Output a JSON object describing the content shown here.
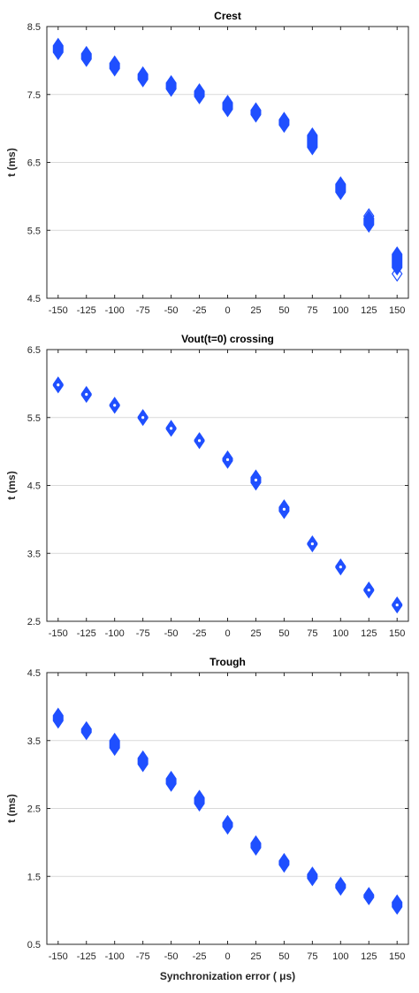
{
  "figure": {
    "xlabel": "Synchronization error ( μs)"
  },
  "chart_data": [
    {
      "type": "scatter",
      "title": "Crest",
      "xlabel": "",
      "ylabel": "t (ms)",
      "xlim": [
        -160,
        160
      ],
      "ylim": [
        4.5,
        8.5
      ],
      "xticks": [
        -150,
        -125,
        -100,
        -75,
        -50,
        -25,
        0,
        25,
        50,
        75,
        100,
        125,
        150
      ],
      "xticklabels": [
        "-150",
        "-125",
        "-100",
        "-75",
        "-50",
        "-25",
        "0",
        "25",
        "50",
        "75",
        "100",
        "125",
        "150"
      ],
      "yticks": [
        4.5,
        5.5,
        6.5,
        7.5,
        8.5
      ],
      "yticklabels": [
        "4.5",
        "5.5",
        "6.5",
        "7.5",
        "8.5"
      ],
      "grid": "horizontal",
      "marker": "diamond",
      "color": "#1f4fff",
      "points": [
        {
          "x": -150,
          "y_min": 8.12,
          "y_max": 8.22
        },
        {
          "x": -125,
          "y_min": 8.02,
          "y_max": 8.1
        },
        {
          "x": -100,
          "y_min": 7.88,
          "y_max": 7.96
        },
        {
          "x": -75,
          "y_min": 7.72,
          "y_max": 7.8
        },
        {
          "x": -50,
          "y_min": 7.58,
          "y_max": 7.67
        },
        {
          "x": -25,
          "y_min": 7.47,
          "y_max": 7.55
        },
        {
          "x": 0,
          "y_min": 7.28,
          "y_max": 7.38
        },
        {
          "x": 25,
          "y_min": 7.2,
          "y_max": 7.27
        },
        {
          "x": 50,
          "y_min": 7.05,
          "y_max": 7.13
        },
        {
          "x": 75,
          "y_min": 6.72,
          "y_max": 6.9
        },
        {
          "x": 100,
          "y_min": 6.06,
          "y_max": 6.18
        },
        {
          "x": 125,
          "y_min": 5.58,
          "y_max": 5.68
        },
        {
          "x": 150,
          "y_min": 4.95,
          "y_max": 5.15
        },
        {
          "x": 150,
          "y": 4.86,
          "hollow": true
        },
        {
          "x": 125,
          "y": 5.71,
          "hollow": true
        }
      ]
    },
    {
      "type": "scatter",
      "title": "Vout(t=0) crossing",
      "xlabel": "",
      "ylabel": "t (ms)",
      "xlim": [
        -160,
        160
      ],
      "ylim": [
        2.5,
        6.5
      ],
      "xticks": [
        -150,
        -125,
        -100,
        -75,
        -50,
        -25,
        0,
        25,
        50,
        75,
        100,
        125,
        150
      ],
      "xticklabels": [
        "-150",
        "-125",
        "-100",
        "-75",
        "-50",
        "-25",
        "0",
        "25",
        "50",
        "75",
        "100",
        "125",
        "150"
      ],
      "yticks": [
        2.5,
        3.5,
        4.5,
        5.5,
        6.5
      ],
      "yticklabels": [
        "2.5",
        "3.5",
        "4.5",
        "5.5",
        "6.5"
      ],
      "grid": "horizontal",
      "marker": "diamond",
      "color": "#1f4fff",
      "points": [
        {
          "x": -150,
          "y_min": 5.97,
          "y_max": 5.99
        },
        {
          "x": -125,
          "y_min": 5.83,
          "y_max": 5.85
        },
        {
          "x": -100,
          "y_min": 5.67,
          "y_max": 5.69
        },
        {
          "x": -75,
          "y_min": 5.49,
          "y_max": 5.51
        },
        {
          "x": -50,
          "y_min": 5.33,
          "y_max": 5.35
        },
        {
          "x": -25,
          "y_min": 5.15,
          "y_max": 5.17
        },
        {
          "x": 0,
          "y_min": 4.86,
          "y_max": 4.9
        },
        {
          "x": 25,
          "y_min": 4.54,
          "y_max": 4.62
        },
        {
          "x": 50,
          "y_min": 4.12,
          "y_max": 4.18
        },
        {
          "x": 75,
          "y_min": 3.63,
          "y_max": 3.65
        },
        {
          "x": 100,
          "y_min": 3.29,
          "y_max": 3.31
        },
        {
          "x": 125,
          "y_min": 2.95,
          "y_max": 2.97
        },
        {
          "x": 150,
          "y_min": 2.73,
          "y_max": 2.75
        }
      ]
    },
    {
      "type": "scatter",
      "title": "Trough",
      "xlabel": "Synchronization error ( μs)",
      "ylabel": "t (ms)",
      "xlim": [
        -160,
        160
      ],
      "ylim": [
        0.5,
        4.5
      ],
      "xticks": [
        -150,
        -125,
        -100,
        -75,
        -50,
        -25,
        0,
        25,
        50,
        75,
        100,
        125,
        150
      ],
      "xticklabels": [
        "-150",
        "-125",
        "-100",
        "-75",
        "-50",
        "-25",
        "0",
        "25",
        "50",
        "75",
        "100",
        "125",
        "150"
      ],
      "yticks": [
        0.5,
        1.5,
        2.5,
        3.5,
        4.5
      ],
      "yticklabels": [
        "0.5",
        "1.5",
        "2.5",
        "3.5",
        "4.5"
      ],
      "grid": "horizontal",
      "marker": "diamond",
      "color": "#1f4fff",
      "points": [
        {
          "x": -150,
          "y_min": 3.79,
          "y_max": 3.87
        },
        {
          "x": -125,
          "y_min": 3.62,
          "y_max": 3.67
        },
        {
          "x": -100,
          "y_min": 3.39,
          "y_max": 3.5
        },
        {
          "x": -75,
          "y_min": 3.15,
          "y_max": 3.24
        },
        {
          "x": -50,
          "y_min": 2.86,
          "y_max": 2.94
        },
        {
          "x": -25,
          "y_min": 2.57,
          "y_max": 2.66
        },
        {
          "x": 0,
          "y_min": 2.23,
          "y_max": 2.29
        },
        {
          "x": 25,
          "y_min": 1.92,
          "y_max": 1.99
        },
        {
          "x": 50,
          "y_min": 1.67,
          "y_max": 1.73
        },
        {
          "x": 75,
          "y_min": 1.47,
          "y_max": 1.53
        },
        {
          "x": 100,
          "y_min": 1.33,
          "y_max": 1.38
        },
        {
          "x": 125,
          "y_min": 1.19,
          "y_max": 1.23
        },
        {
          "x": 150,
          "y_min": 1.05,
          "y_max": 1.12
        }
      ]
    }
  ]
}
